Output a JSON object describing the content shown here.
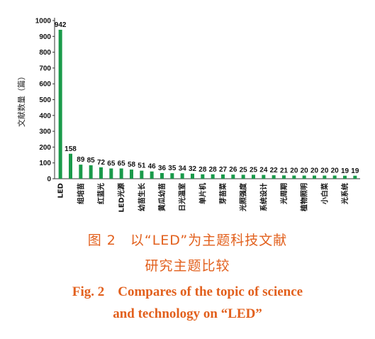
{
  "chart_data": {
    "type": "bar",
    "title": "",
    "xlabel": "",
    "ylabel": "文献数量（篇）",
    "ylim": [
      0,
      1000
    ],
    "yticks": [
      0,
      100,
      200,
      300,
      400,
      500,
      600,
      700,
      800,
      900,
      1000
    ],
    "bar_color": "#1a9a4a",
    "grid": false,
    "categories": [
      "LED",
      "",
      "组培苗",
      "",
      "红蓝光",
      "",
      "LED光源",
      "",
      "幼苗生长",
      "",
      "黄瓜幼苗",
      "",
      "日光温室",
      "",
      "单片机",
      "",
      "芽苗菜",
      "",
      "光照强度",
      "",
      "系统设计",
      "",
      "光周期",
      "",
      "植物照明",
      "",
      "小白菜",
      "",
      "光系统",
      ""
    ],
    "values": [
      942,
      158,
      89,
      85,
      72,
      65,
      65,
      58,
      51,
      46,
      36,
      35,
      34,
      32,
      28,
      28,
      27,
      26,
      25,
      25,
      24,
      22,
      21,
      20,
      20,
      20,
      20,
      20,
      19,
      19
    ]
  },
  "caption": {
    "cn_line1": "图 2　以“LED”为主题科技文献",
    "cn_line2": "研究主题比较",
    "en_line1": "Fig. 2　Compares of the topic of science",
    "en_line2": "and technology on “LED”"
  }
}
